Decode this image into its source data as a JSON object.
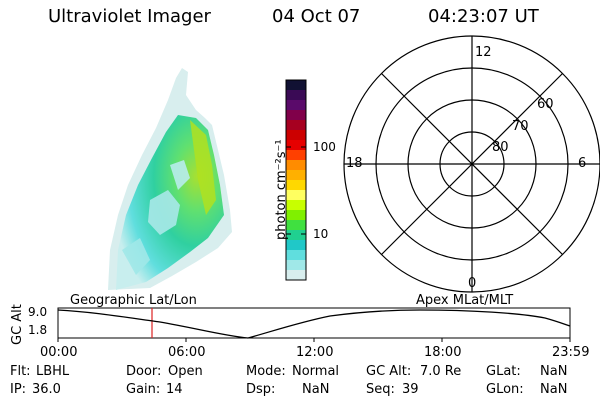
{
  "header": {
    "instrument": "Ultraviolet Imager",
    "date": "04 Oct 07",
    "time": "04:23:07 UT"
  },
  "colorbar": {
    "unit_label": "photon cm⁻²s⁻¹",
    "tick_labels": [
      "100",
      "10"
    ],
    "colors": [
      "#111133",
      "#3a0a55",
      "#5a0a6a",
      "#80004a",
      "#a60020",
      "#cc0000",
      "#e60000",
      "#ff4000",
      "#ff8c00",
      "#ffb000",
      "#ffd800",
      "#ffff60",
      "#c8ff00",
      "#80f000",
      "#40e040",
      "#20d090",
      "#20c8c8",
      "#60dede",
      "#a0e8e8",
      "#d8eeee"
    ]
  },
  "polar_plot": {
    "mlt_labels": [
      "12",
      "18",
      "6",
      "0"
    ],
    "lat_labels": [
      "60",
      "70",
      "80"
    ]
  },
  "altitude_panel": {
    "axis_label": "GC Alt",
    "yticks": [
      "9.0",
      "1.8"
    ],
    "left_title": "Geographic Lat/Lon",
    "right_title": "Apex MLat/MLT",
    "time_ticks": [
      "00:00",
      "06:00",
      "12:00",
      "18:00",
      "23:59"
    ],
    "marker_color": "#dd2222"
  },
  "info": [
    [
      {
        "k": "Flt:",
        "v": "LBHL"
      },
      {
        "k": "Door:",
        "v": "Open"
      },
      {
        "k": "Mode:",
        "v": "Normal"
      },
      {
        "k": "GC Alt:",
        "v": "7.0 Re"
      },
      {
        "k": "GLat:",
        "v": "NaN"
      }
    ],
    [
      {
        "k": "IP:",
        "v": "36.0"
      },
      {
        "k": "Gain:",
        "v": "14"
      },
      {
        "k": "Dsp:",
        "v": "NaN"
      },
      {
        "k": "Seq:",
        "v": "39"
      },
      {
        "k": "GLon:",
        "v": "NaN"
      }
    ]
  ]
}
